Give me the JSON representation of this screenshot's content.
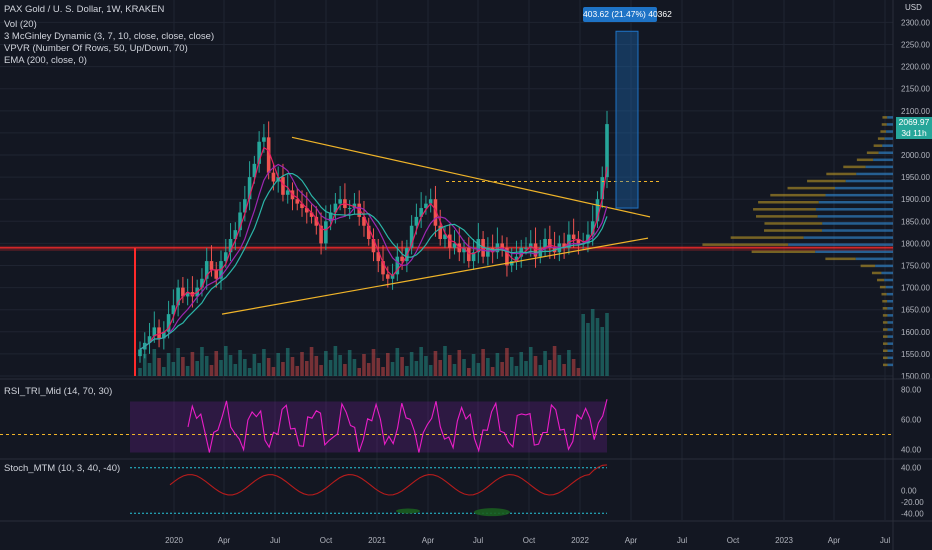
{
  "header": {
    "title": "PAX Gold / U. S. Dollar, 1W, KRAKEN",
    "indicators": [
      "Vol (20)",
      "3 McGinley Dynamic (3, 7, 10, close, close, close)",
      "VPVR (Number Of Rows, 50, Up/Down, 70)",
      "EMA (200, close, 0)"
    ]
  },
  "currency": "USD",
  "price_label": {
    "value": "2069.97",
    "countdown": "3d 11h"
  },
  "measure_label": "403.62 (21.47%) 40362",
  "rsi_panel": {
    "title": "RSI_TRI_Mid (14, 70, 30)",
    "ticks": [
      "80.00",
      "60.00",
      "40.00"
    ]
  },
  "stoch_panel": {
    "title": "Stoch_MTM (10, 3, 40, -40)",
    "ticks": [
      "40.00",
      "0.00",
      "-20.00",
      "-40.00"
    ]
  },
  "colors": {
    "background": "#131722",
    "up": "#26a69a",
    "down": "#ef5350",
    "trendline": "#f0b429",
    "support": "#ff2a2a",
    "rsi": "#e91ec7",
    "measure": "#1e73c6"
  },
  "chart_data": {
    "type": "candlestick",
    "x_ticks": [
      "2020",
      "Apr",
      "Jul",
      "Oct",
      "2021",
      "Apr",
      "Jul",
      "Oct",
      "2022",
      "Apr",
      "Jul",
      "Oct",
      "2023",
      "Apr",
      "Jul"
    ],
    "y_ticks": [
      "2300.00",
      "2250.00",
      "2200.00",
      "2150.00",
      "2100.00",
      "2050.00",
      "2000.00",
      "1950.00",
      "1900.00",
      "1850.00",
      "1800.00",
      "1750.00",
      "1700.00",
      "1650.00",
      "1600.00",
      "1550.00",
      "1500.00"
    ],
    "ylim": [
      1500,
      2310
    ],
    "last_price": 2069.97,
    "weekly_closes": [
      1560,
      1575,
      1590,
      1610,
      1585,
      1600,
      1640,
      1660,
      1700,
      1680,
      1690,
      1680,
      1700,
      1720,
      1760,
      1740,
      1720,
      1760,
      1780,
      1810,
      1830,
      1870,
      1900,
      1950,
      1980,
      2030,
      2040,
      1960,
      1940,
      1950,
      1910,
      1920,
      1900,
      1890,
      1880,
      1870,
      1860,
      1840,
      1800,
      1850,
      1870,
      1890,
      1900,
      1880,
      1880,
      1890,
      1860,
      1840,
      1810,
      1780,
      1760,
      1730,
      1720,
      1730,
      1770,
      1760,
      1790,
      1840,
      1860,
      1880,
      1890,
      1900,
      1840,
      1810,
      1820,
      1790,
      1800,
      1780,
      1790,
      1760,
      1780,
      1810,
      1770,
      1790,
      1780,
      1800,
      1790,
      1750,
      1760,
      1770,
      1790,
      1790,
      1800,
      1770,
      1790,
      1810,
      1790,
      1780,
      1800,
      1790,
      1820,
      1810,
      1800,
      1800,
      1820,
      1850,
      1900,
      1950,
      2069.97
    ],
    "annotations": {
      "support_level": 1790,
      "resistance_dashed": 1940,
      "measure_low": 1880,
      "measure_high": 2280
    }
  }
}
